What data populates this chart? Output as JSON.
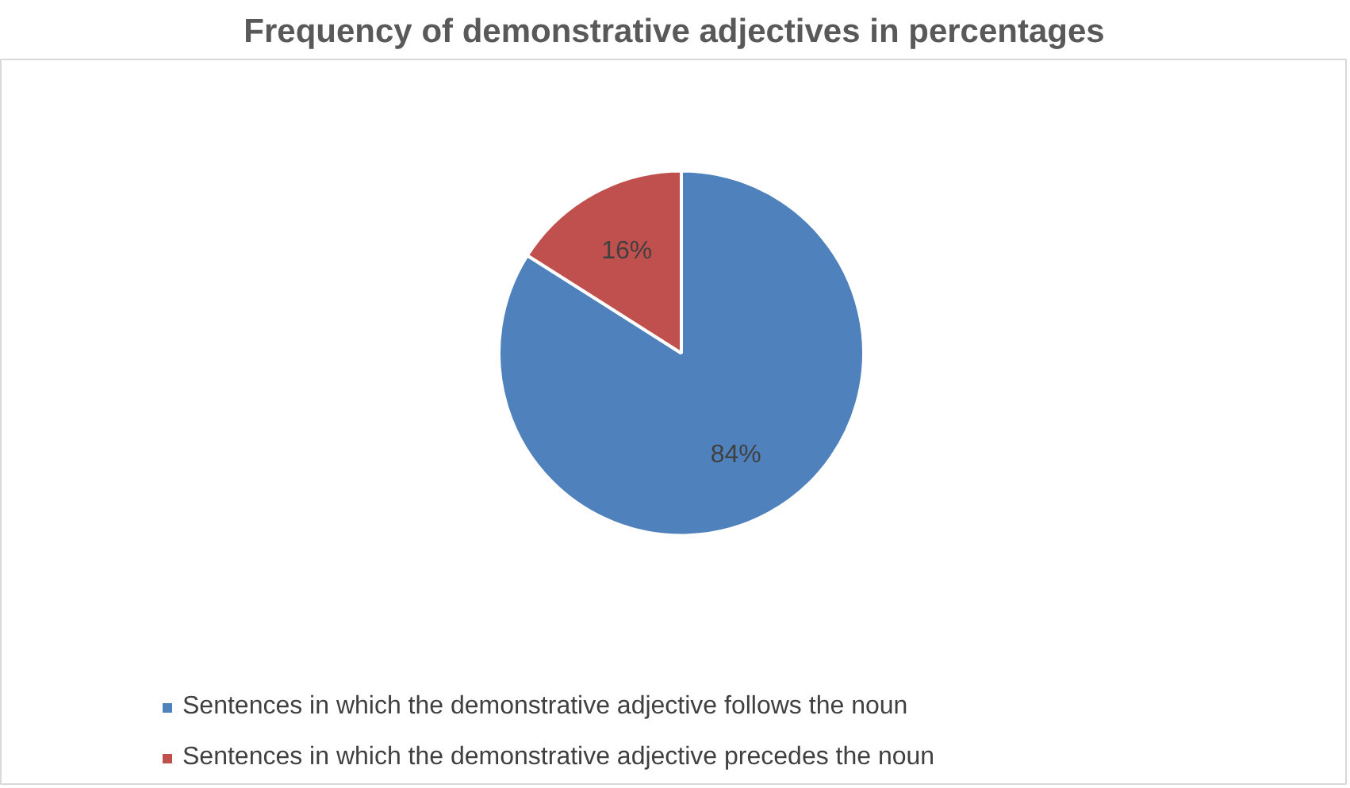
{
  "chart_data": {
    "type": "pie",
    "title": "Frequency of demonstrative adjectives in percentages",
    "categories": [
      "Sentences in which the demonstrative adjective follows the noun",
      "Sentences in which the demonstrative adjective precedes the noun"
    ],
    "values": [
      84,
      16
    ],
    "colors": [
      "#4f81bd",
      "#c0504d"
    ],
    "value_labels": [
      "84%",
      "16%"
    ],
    "legend": "bottom"
  }
}
